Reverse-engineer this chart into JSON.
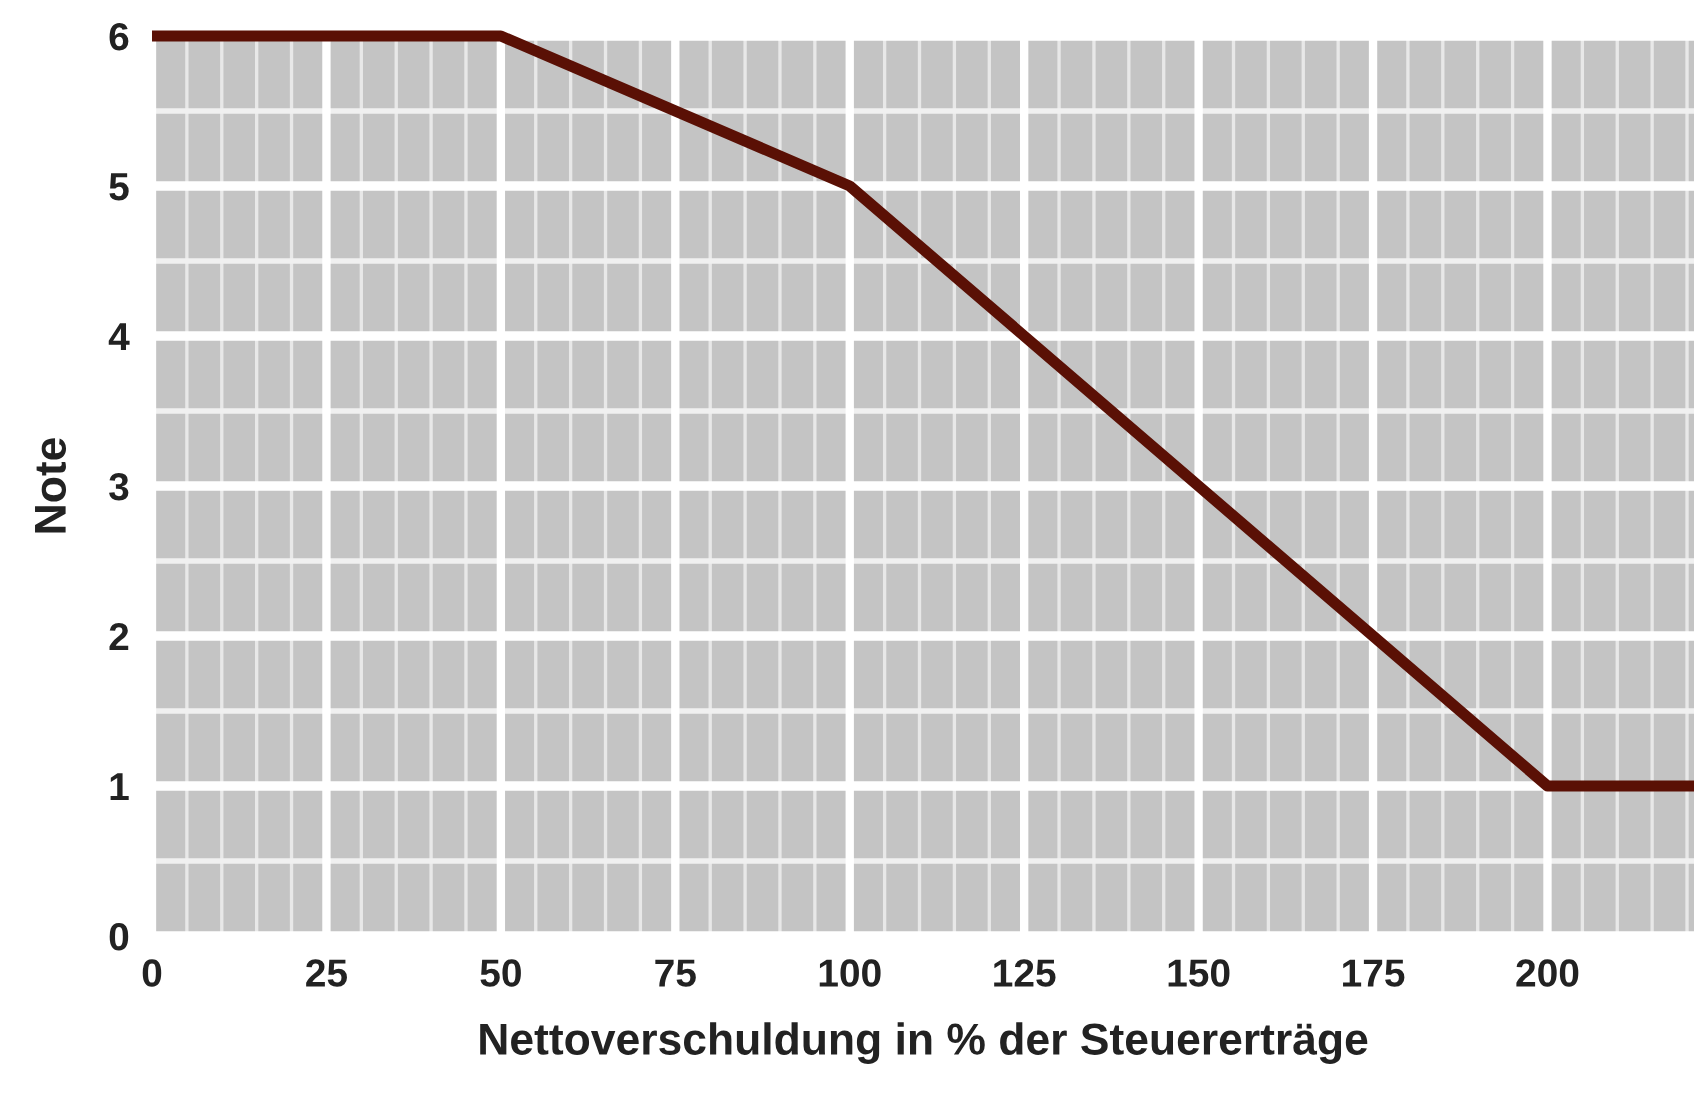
{
  "chart_data": {
    "type": "line",
    "xlabel": "Nettoverschuldung in % der Steuererträge",
    "ylabel": "Note",
    "x": [
      0,
      50,
      100,
      200,
      221
    ],
    "series": [
      {
        "color": "#5a1005",
        "values": [
          6,
          6,
          5,
          1,
          1
        ]
      }
    ],
    "xlim": [
      0,
      221
    ],
    "xticks": [
      0,
      25,
      50,
      75,
      100,
      125,
      150,
      175,
      200
    ],
    "ylim": [
      0,
      6
    ],
    "yticks": [
      0,
      1,
      2,
      3,
      4,
      5,
      6
    ],
    "grid": true,
    "marker": "none",
    "line_style": "solid"
  }
}
